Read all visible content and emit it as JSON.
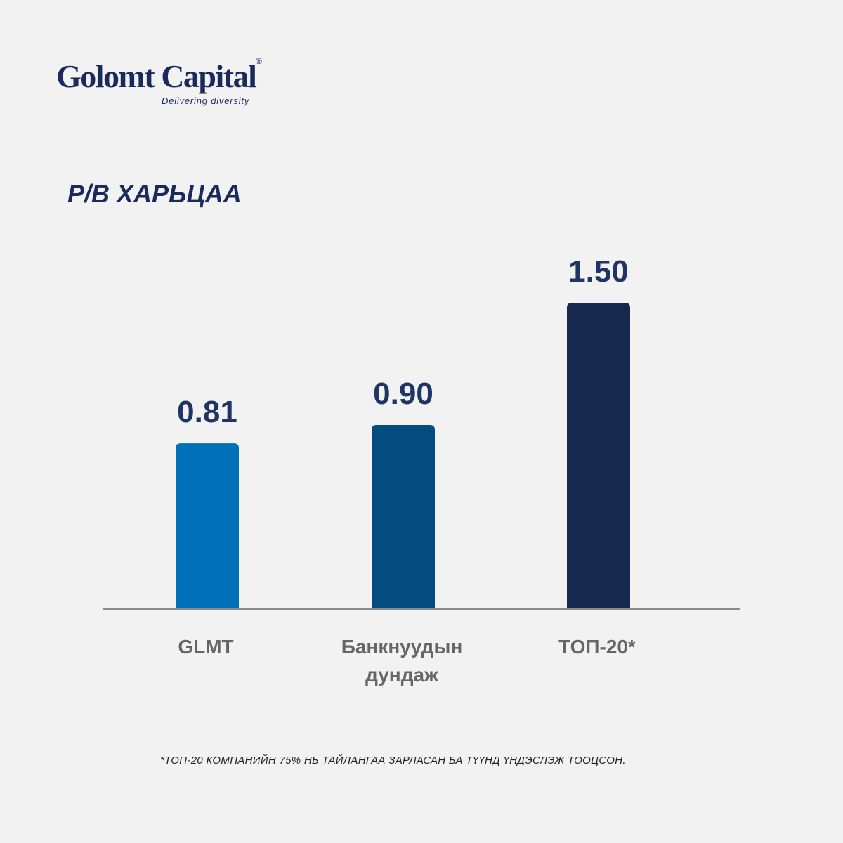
{
  "logo": {
    "name": "Golomt Capital",
    "registered_mark": "®",
    "tagline": "Delivering diversity"
  },
  "footnote": "*ТОП-20 КОМПАНИЙН 75% НЬ ТАЙЛАНГАА ЗАРЛАСАН БА ТҮҮНД ҮНДЭСЛЭЖ ТООЦСОН.",
  "chart_data": {
    "type": "bar",
    "title": "P/B ХАРЬЦАА",
    "categories": [
      [
        "GLMT"
      ],
      [
        "Банкнуудын",
        "дундаж"
      ],
      [
        "ТОП-20*"
      ]
    ],
    "values": [
      0.81,
      0.9,
      1.5
    ],
    "value_labels": [
      "0.81",
      "0.90",
      "1.50"
    ],
    "bar_colors": [
      "#0070b8",
      "#044b80",
      "#17284f"
    ],
    "ylim": [
      0,
      1.5
    ],
    "grid": false,
    "legend": "none",
    "value_label_color": "#1f3566",
    "category_label_color": "#666666",
    "axis_color": "#8a8a8a"
  }
}
